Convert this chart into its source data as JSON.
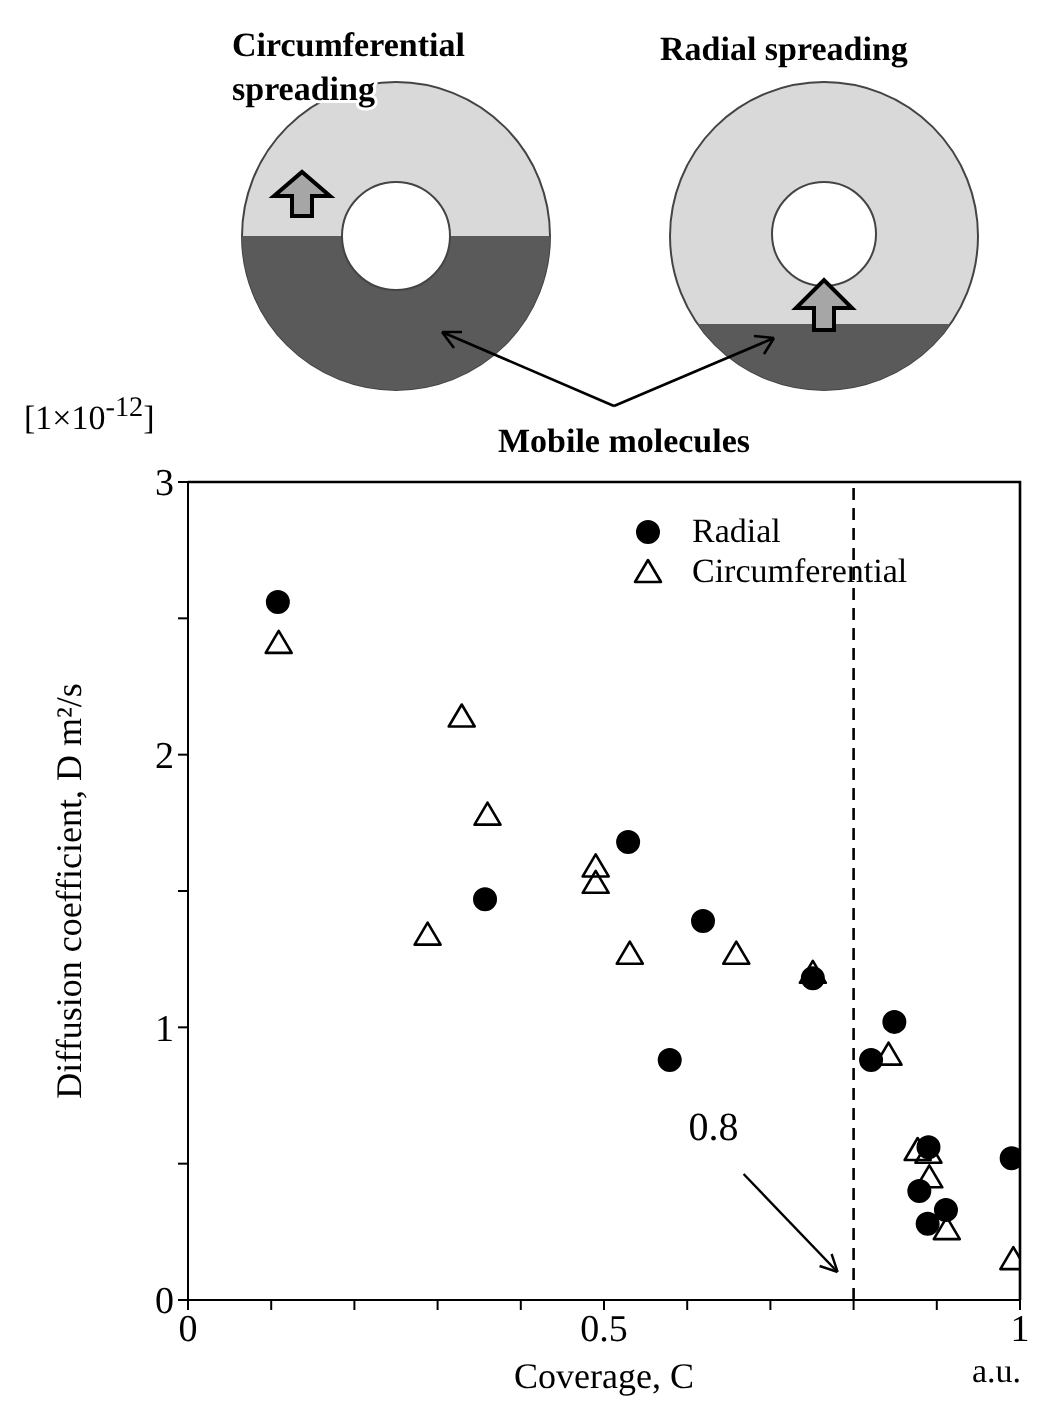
{
  "chart_data": {
    "type": "scatter",
    "xlabel": "Coverage, C",
    "ylabel": "Diffusion coefficient, D   m²/s",
    "annotations": [
      "[1×10$^{-12}$]",
      "a.u.",
      "Circumferential spreading",
      "Radial spreading",
      "Mobile molecules"
    ],
    "xlim": [
      0,
      1
    ],
    "ylim": [
      0,
      3
    ],
    "xticks": [
      0,
      {
        "value": 0.1,
        "label": null
      },
      {
        "value": 0.2,
        "label": null
      },
      {
        "value": 0.3,
        "label": null
      },
      {
        "value": 0.4,
        "label": null
      },
      0.5,
      {
        "value": 0.6,
        "label": null
      },
      {
        "value": 0.7,
        "label": null
      },
      {
        "value": 0.8,
        "label": null
      },
      {
        "value": 0.9,
        "label": null
      },
      1
    ],
    "yticks": [
      0,
      {
        "value": 0.5,
        "label": null
      },
      1,
      {
        "value": 1.5,
        "label": null
      },
      2,
      {
        "value": 2.5,
        "label": null
      },
      3
    ],
    "grid": false,
    "legend": "top right",
    "ref_lines": [
      {
        "axis": "x",
        "value": 0.8,
        "label": "0.8",
        "line_style": "dashed",
        "color": "#000000"
      }
    ],
    "series": [
      {
        "name": "Radial",
        "color": "#000000",
        "marker": "circle",
        "x": [
          0.108,
          0.357,
          0.529,
          0.579,
          0.619,
          0.751,
          0.821,
          0.849,
          0.879,
          0.889,
          0.89,
          0.911,
          0.99
        ],
        "values": [
          2.56,
          1.47,
          1.68,
          0.88,
          1.39,
          1.18,
          0.88,
          1.02,
          0.4,
          0.28,
          0.56,
          0.33,
          0.52
        ]
      },
      {
        "name": "Circumferential",
        "color": "#000000",
        "marker": "triangle",
        "x": [
          0.109,
          0.288,
          0.329,
          0.36,
          0.49,
          0.49,
          0.531,
          0.659,
          0.751,
          0.842,
          0.877,
          0.89,
          0.891,
          0.912,
          0.992
        ],
        "values": [
          2.41,
          1.34,
          2.14,
          1.78,
          1.59,
          1.53,
          1.27,
          1.27,
          1.2,
          0.9,
          0.55,
          0.54,
          0.45,
          0.26,
          0.15
        ]
      }
    ]
  }
}
